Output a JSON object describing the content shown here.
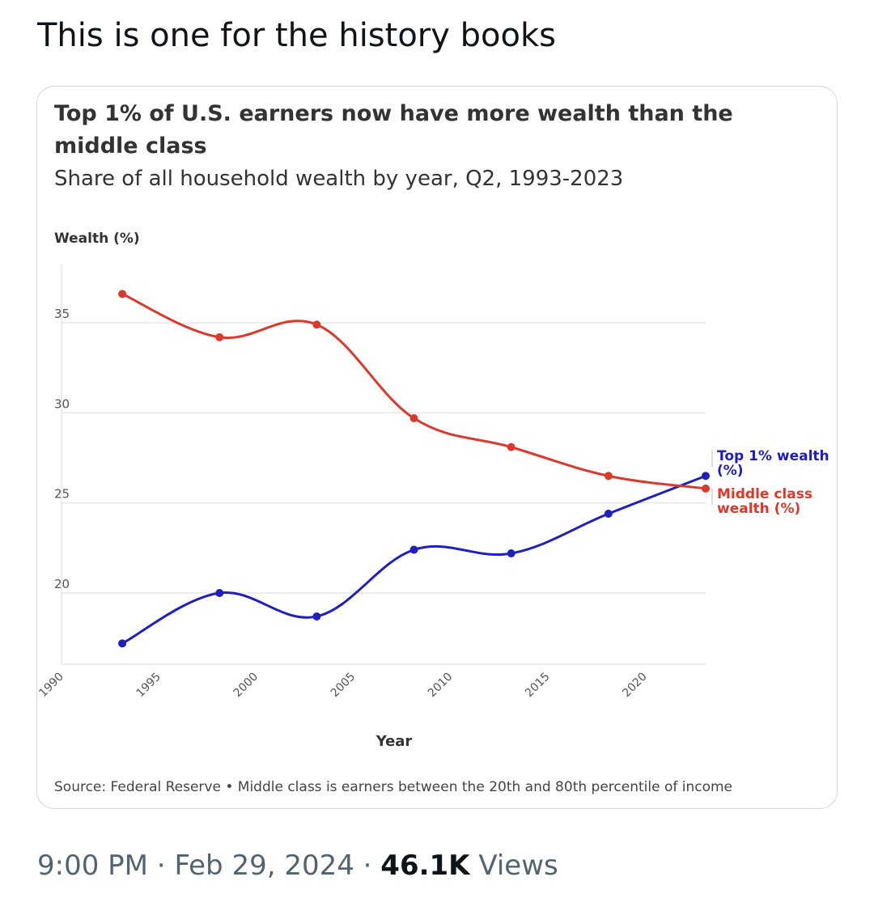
{
  "tweet": {
    "text": "This is one for the history books",
    "time": "9:00 PM",
    "separator": " · ",
    "date": "Feb 29, 2024",
    "views_count": "46.1K",
    "views_label": " Views"
  },
  "card": {
    "source_note": "Source: Federal Reserve • Middle class is earners between the 20th and 80th percentile of income"
  },
  "colors": {
    "top1": "#1f1fc1",
    "middle": "#d93a2b",
    "grid": "#e6e6e6",
    "axis_text": "#555555"
  },
  "chart_data": {
    "type": "line",
    "title": "Top 1% of U.S. earners now have more wealth than the middle class",
    "subtitle": "Share of all household wealth by year, Q2, 1993-2023",
    "ylabel": "Wealth (%)",
    "xlabel": "Year",
    "xlim": [
      1990,
      2023
    ],
    "ylim": [
      16,
      38
    ],
    "xticks": [
      1990,
      1995,
      2000,
      2005,
      2010,
      2015,
      2020
    ],
    "yticks": [
      20,
      25,
      30,
      35
    ],
    "grid": true,
    "series": [
      {
        "name": "Top 1% wealth (%)",
        "color": "#1f1fc1",
        "x": [
          1993,
          1998,
          2003,
          2008,
          2013,
          2018,
          2023
        ],
        "values": [
          17.2,
          20.0,
          18.7,
          22.4,
          22.2,
          24.4,
          26.5
        ]
      },
      {
        "name": "Middle class wealth (%)",
        "color": "#d93a2b",
        "x": [
          1993,
          1998,
          2003,
          2008,
          2013,
          2018,
          2023
        ],
        "values": [
          36.6,
          34.2,
          34.9,
          29.7,
          28.1,
          26.5,
          25.8
        ]
      }
    ],
    "source": "Source: Federal Reserve • Middle class is earners between the 20th and 80th percentile of income"
  }
}
